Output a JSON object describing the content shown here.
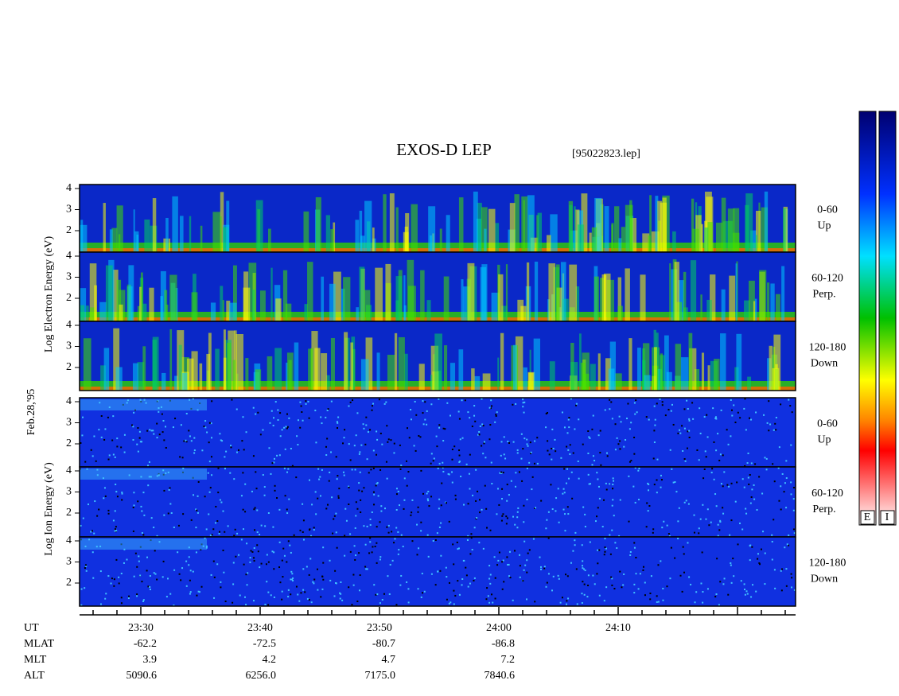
{
  "header": {
    "title": "EXOS-D LEP",
    "file": "[95022823.lep]"
  },
  "date_label": "Feb.28,'95",
  "electron_axis_label": "Log  Electron  Energy  (eV)",
  "ion_axis_label": "Log  Ion  Energy  (eV)",
  "yticks": [
    4,
    3,
    2
  ],
  "panels": [
    {
      "angle": "0-60",
      "direction": "Up"
    },
    {
      "angle": "60-120",
      "direction": "Perp."
    },
    {
      "angle": "120-180",
      "direction": "Down"
    },
    {
      "angle": "0-60",
      "direction": "Up"
    },
    {
      "angle": "60-120",
      "direction": "Perp."
    },
    {
      "angle": "120-180",
      "direction": "Down"
    }
  ],
  "colorbars": [
    "E",
    "I"
  ],
  "ephemeris": [
    {
      "label": "UT",
      "values": [
        "23:30",
        "23:40",
        "23:50",
        "24:00",
        "24:10"
      ]
    },
    {
      "label": "MLAT",
      "values": [
        "-62.2",
        "-72.5",
        "-80.7",
        "-86.8"
      ]
    },
    {
      "label": "MLT",
      "values": [
        "3.9",
        "4.2",
        "4.7",
        "7.2"
      ]
    },
    {
      "label": "ALT",
      "values": [
        "5090.6",
        "6256.0",
        "7175.0",
        "7840.6"
      ]
    }
  ]
}
